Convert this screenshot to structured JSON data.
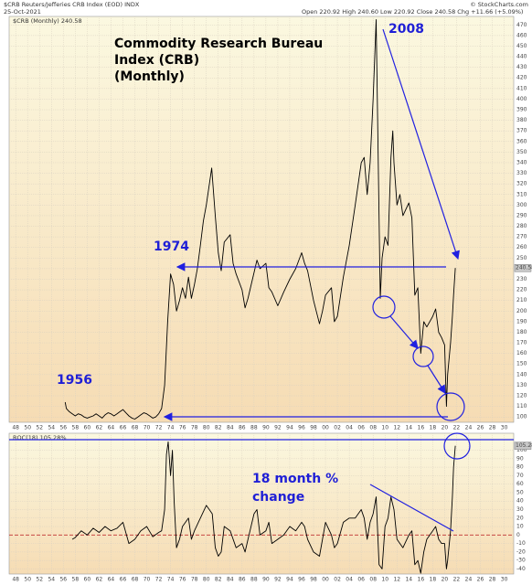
{
  "header": {
    "symbol": "$CRB Reuters/Jefferies CRB Index (EOD) INDX",
    "date": "25-Oct-2021",
    "quote": "Open 220.92  High 240.60  Low 220.92  Close 240.58  Chg +11.66 (+5.09%)",
    "credit": "© StockCharts.com"
  },
  "chart_data": [
    {
      "type": "line",
      "legend": "$CRB (Monthly) 240.58",
      "annotations": [
        "Commodity Research Bureau",
        "Index (CRB)",
        "(Monthly)",
        "2008",
        "1974",
        "1956"
      ],
      "series": [
        {
          "name": "$CRB",
          "color": "#000000",
          "x": [
            1956.3,
            1956.5,
            1957,
            1957.5,
            1958,
            1958.5,
            1959,
            1959.5,
            1960,
            1960.5,
            1961,
            1961.5,
            1962,
            1962.5,
            1963,
            1963.5,
            1964,
            1964.5,
            1965,
            1965.5,
            1966,
            1966.5,
            1967,
            1967.5,
            1968,
            1968.5,
            1969,
            1969.5,
            1970,
            1970.5,
            1971,
            1971.5,
            1972,
            1972.5,
            1973,
            1973.5,
            1974,
            1974.5,
            1975,
            1975.5,
            1976,
            1976.5,
            1977,
            1977.5,
            1978,
            1978.5,
            1979,
            1979.5,
            1980,
            1980.9,
            1981.5,
            1982,
            1982.5,
            1983,
            1984,
            1984.5,
            1985,
            1986,
            1986.5,
            1987,
            1988.5,
            1989,
            1990,
            1990.5,
            1991,
            1992,
            1993,
            1994,
            1995,
            1996,
            1996.5,
            1997,
            1998,
            1999,
            1999.5,
            2000,
            2001,
            2001.5,
            2002,
            2003,
            2004,
            2005,
            2006,
            2006.5,
            2007,
            2007.5,
            2008,
            2008.5,
            2009.2,
            2009.5,
            2010,
            2010.5,
            2011,
            2011.3,
            2011.5,
            2012,
            2012.5,
            2013,
            2014,
            2014.5,
            2015,
            2015.5,
            2016,
            2016.5,
            2017,
            2018,
            2018.5,
            2019,
            2019.5,
            2020,
            2020.3,
            2020.5,
            2021,
            2021.3,
            2021.5,
            2021.8
          ],
          "values": [
            114,
            108,
            105,
            103,
            101,
            103,
            102,
            100,
            99,
            100,
            101,
            103,
            101,
            99,
            102,
            104,
            103,
            101,
            103,
            105,
            107,
            104,
            101,
            99,
            98,
            100,
            102,
            104,
            103,
            101,
            99,
            100,
            103,
            108,
            130,
            190,
            235,
            225,
            200,
            210,
            222,
            212,
            232,
            212,
            225,
            240,
            262,
            285,
            300,
            335,
            290,
            255,
            238,
            265,
            272,
            245,
            235,
            220,
            203,
            212,
            248,
            240,
            245,
            222,
            218,
            205,
            218,
            230,
            240,
            255,
            245,
            238,
            210,
            188,
            200,
            215,
            222,
            190,
            195,
            232,
            262,
            300,
            340,
            345,
            310,
            340,
            400,
            475,
            212,
            250,
            270,
            262,
            345,
            370,
            340,
            300,
            310,
            290,
            302,
            288,
            215,
            222,
            160,
            190,
            185,
            195,
            202,
            180,
            175,
            168,
            110,
            140,
            170,
            195,
            215,
            240.58
          ]
        }
      ],
      "xlim": [
        1946.9,
        2031.6
      ],
      "xticks": [
        {
          "value": 1948,
          "label": "48"
        },
        {
          "value": 1950,
          "label": "50"
        },
        {
          "value": 1952,
          "label": "52"
        },
        {
          "value": 1954,
          "label": "54"
        },
        {
          "value": 1956,
          "label": "56"
        },
        {
          "value": 1958,
          "label": "58"
        },
        {
          "value": 1960,
          "label": "60"
        },
        {
          "value": 1962,
          "label": "62"
        },
        {
          "value": 1964,
          "label": "64"
        },
        {
          "value": 1966,
          "label": "66"
        },
        {
          "value": 1968,
          "label": "68"
        },
        {
          "value": 1970,
          "label": "70"
        },
        {
          "value": 1972,
          "label": "72"
        },
        {
          "value": 1974,
          "label": "74"
        },
        {
          "value": 1976,
          "label": "76"
        },
        {
          "value": 1978,
          "label": "78"
        },
        {
          "value": 1980,
          "label": "80"
        },
        {
          "value": 1982,
          "label": "82"
        },
        {
          "value": 1984,
          "label": "84"
        },
        {
          "value": 1986,
          "label": "86"
        },
        {
          "value": 1988,
          "label": "88"
        },
        {
          "value": 1990,
          "label": "90"
        },
        {
          "value": 1992,
          "label": "92"
        },
        {
          "value": 1994,
          "label": "94"
        },
        {
          "value": 1996,
          "label": "96"
        },
        {
          "value": 1998,
          "label": "98"
        },
        {
          "value": 2000,
          "label": "00"
        },
        {
          "value": 2002,
          "label": "02"
        },
        {
          "value": 2004,
          "label": "04"
        },
        {
          "value": 2006,
          "label": "06"
        },
        {
          "value": 2008,
          "label": "08"
        },
        {
          "value": 2010,
          "label": "10"
        },
        {
          "value": 2012,
          "label": "12"
        },
        {
          "value": 2014,
          "label": "14"
        },
        {
          "value": 2016,
          "label": "16"
        },
        {
          "value": 2018,
          "label": "18"
        },
        {
          "value": 2020,
          "label": "20"
        },
        {
          "value": 2022,
          "label": "22"
        },
        {
          "value": 2024,
          "label": "24"
        },
        {
          "value": 2026,
          "label": "26"
        },
        {
          "value": 2028,
          "label": "28"
        },
        {
          "value": 2030,
          "label": "30"
        }
      ],
      "ylim": [
        95,
        478
      ],
      "yticks": [
        100,
        110,
        120,
        130,
        140,
        150,
        160,
        170,
        180,
        190,
        200,
        210,
        220,
        230,
        240,
        250,
        260,
        270,
        280,
        290,
        300,
        310,
        320,
        330,
        340,
        350,
        360,
        370,
        380,
        390,
        400,
        410,
        420,
        430,
        440,
        450,
        460,
        470
      ],
      "grid": true
    },
    {
      "type": "line",
      "legend": "ROC(18) 105.28%",
      "annotations": [
        "18 month %",
        "change"
      ],
      "series": [
        {
          "name": "ROC(18)",
          "color": "#000000",
          "x": [
            1957.5,
            1958,
            1959,
            1960,
            1961,
            1962,
            1963,
            1964,
            1965,
            1966,
            1967,
            1968,
            1969,
            1970,
            1971,
            1972,
            1972.5,
            1973,
            1973.3,
            1973.6,
            1974,
            1974.3,
            1974.6,
            1975,
            1975.5,
            1976,
            1977,
            1977.5,
            1978,
            1979,
            1980,
            1980.5,
            1981,
            1981.5,
            1982,
            1982.5,
            1983,
            1984,
            1985,
            1986,
            1986.5,
            1987,
            1988,
            1988.5,
            1989,
            1990,
            1990.5,
            1991,
            1992,
            1993,
            1994,
            1995,
            1996,
            1996.5,
            1997,
            1998,
            1999,
            1999.5,
            2000,
            2001,
            2001.5,
            2002,
            2003,
            2004,
            2005,
            2006,
            2006.5,
            2007,
            2007.5,
            2008,
            2008.5,
            2009,
            2009.5,
            2010,
            2010.5,
            2011,
            2011.5,
            2012,
            2012.5,
            2013,
            2014,
            2014.5,
            2015,
            2015.5,
            2016,
            2016.5,
            2017,
            2018,
            2018.5,
            2019,
            2019.5,
            2020,
            2020.3,
            2020.5,
            2021,
            2021.3,
            2021.5,
            2021.8
          ],
          "values": [
            -5,
            -3,
            5,
            0,
            8,
            3,
            10,
            5,
            8,
            15,
            -10,
            -5,
            5,
            10,
            -2,
            3,
            5,
            30,
            95,
            110,
            70,
            100,
            40,
            -15,
            -5,
            10,
            20,
            -5,
            5,
            20,
            35,
            30,
            25,
            -15,
            -25,
            -20,
            10,
            5,
            -15,
            -10,
            -20,
            -5,
            25,
            30,
            0,
            5,
            15,
            -10,
            -5,
            0,
            10,
            5,
            15,
            10,
            -5,
            -20,
            -25,
            -5,
            15,
            0,
            -15,
            -10,
            15,
            20,
            20,
            30,
            20,
            -5,
            15,
            25,
            45,
            -35,
            -40,
            10,
            20,
            45,
            30,
            -5,
            -10,
            -15,
            0,
            5,
            -35,
            -30,
            -45,
            -20,
            -5,
            5,
            10,
            -5,
            -10,
            -10,
            -40,
            -30,
            5,
            45,
            80,
            105.28
          ]
        }
      ],
      "xlim": [
        1946.9,
        2031.6
      ],
      "xticks": [
        {
          "value": 1948,
          "label": "48"
        },
        {
          "value": 1950,
          "label": "50"
        },
        {
          "value": 1952,
          "label": "52"
        },
        {
          "value": 1954,
          "label": "54"
        },
        {
          "value": 1956,
          "label": "56"
        },
        {
          "value": 1958,
          "label": "58"
        },
        {
          "value": 1960,
          "label": "60"
        },
        {
          "value": 1962,
          "label": "62"
        },
        {
          "value": 1964,
          "label": "64"
        },
        {
          "value": 1966,
          "label": "66"
        },
        {
          "value": 1968,
          "label": "68"
        },
        {
          "value": 1970,
          "label": "70"
        },
        {
          "value": 1972,
          "label": "72"
        },
        {
          "value": 1974,
          "label": "74"
        },
        {
          "value": 1976,
          "label": "76"
        },
        {
          "value": 1978,
          "label": "78"
        },
        {
          "value": 1980,
          "label": "80"
        },
        {
          "value": 1982,
          "label": "82"
        },
        {
          "value": 1984,
          "label": "84"
        },
        {
          "value": 1986,
          "label": "86"
        },
        {
          "value": 1988,
          "label": "88"
        },
        {
          "value": 1990,
          "label": "90"
        },
        {
          "value": 1992,
          "label": "92"
        },
        {
          "value": 1994,
          "label": "94"
        },
        {
          "value": 1996,
          "label": "96"
        },
        {
          "value": 1998,
          "label": "98"
        },
        {
          "value": 2000,
          "label": "00"
        },
        {
          "value": 2002,
          "label": "02"
        },
        {
          "value": 2004,
          "label": "04"
        },
        {
          "value": 2006,
          "label": "06"
        },
        {
          "value": 2008,
          "label": "08"
        },
        {
          "value": 2010,
          "label": "10"
        },
        {
          "value": 2012,
          "label": "12"
        },
        {
          "value": 2014,
          "label": "14"
        },
        {
          "value": 2016,
          "label": "16"
        },
        {
          "value": 2018,
          "label": "18"
        },
        {
          "value": 2020,
          "label": "20"
        },
        {
          "value": 2022,
          "label": "22"
        },
        {
          "value": 2024,
          "label": "24"
        },
        {
          "value": 2026,
          "label": "26"
        },
        {
          "value": 2028,
          "label": "28"
        },
        {
          "value": 2030,
          "label": "30"
        }
      ],
      "ylim": [
        -46,
        120
      ],
      "yticks": [
        -40,
        -30,
        -20,
        -10,
        0,
        10,
        20,
        30,
        40,
        50,
        60,
        70,
        80,
        90,
        100
      ],
      "grid": true
    }
  ]
}
